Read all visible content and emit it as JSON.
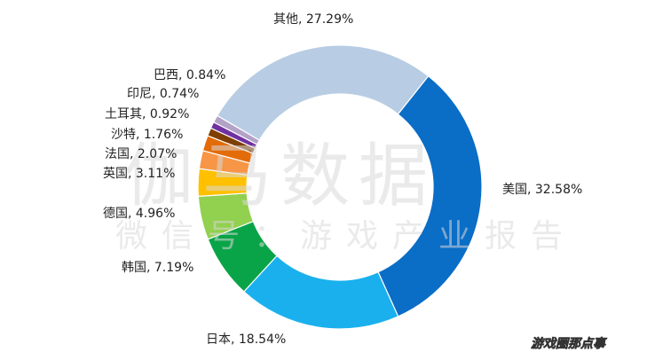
{
  "chart_data": {
    "type": "pie",
    "style": "donut",
    "slices": [
      {
        "label": "美国, 32.58%",
        "value": 32.58,
        "color": "#0a6dc6"
      },
      {
        "label": "日本, 18.54%",
        "value": 18.54,
        "color": "#1ab0ee"
      },
      {
        "label": "韩国, 7.19%",
        "value": 7.19,
        "color": "#0aa448"
      },
      {
        "label": "德国, 4.96%",
        "value": 4.96,
        "color": "#92d050"
      },
      {
        "label": "英国, 3.11%",
        "value": 3.11,
        "color": "#ffc000"
      },
      {
        "label": "法国, 2.07%",
        "value": 2.07,
        "color": "#f79646"
      },
      {
        "label": "沙特, 1.76%",
        "value": 1.76,
        "color": "#e36c09"
      },
      {
        "label": "土耳其, 0.92%",
        "value": 0.92,
        "color": "#7f3f00"
      },
      {
        "label": "印尼, 0.74%",
        "value": 0.74,
        "color": "#7030a0"
      },
      {
        "label": "巴西, 0.84%",
        "value": 0.84,
        "color": "#b3a2c7"
      },
      {
        "label": "其他, 27.29%",
        "value": 27.29,
        "color": "#b8cde4"
      }
    ]
  },
  "watermark": {
    "line1": "伽马数据",
    "line2": "微信号：游戏产业报告"
  },
  "corner_text": "游戏圈那点事"
}
